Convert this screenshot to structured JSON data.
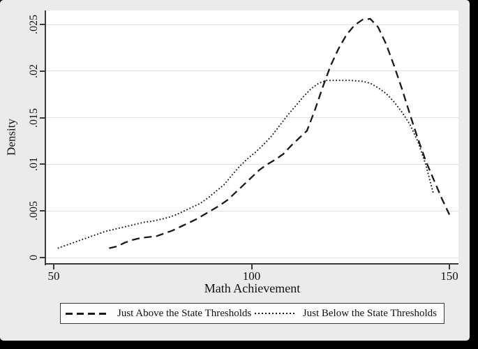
{
  "frame": {
    "background": "#000000"
  },
  "canvas": {
    "background": "#ebebeb",
    "plot_background": "#ffffff"
  },
  "chart_data": {
    "type": "line",
    "title": "",
    "xlabel": "Math Achievement",
    "ylabel": "Density",
    "xlim": [
      48,
      152.3
    ],
    "ylim": [
      0,
      0.0271
    ],
    "grid": "horizontal",
    "gridline_color": "#e0e0e0",
    "axis_color": "#3a3a3a",
    "legend_position": "bottom-boxed",
    "x_ticks": [
      {
        "label": "50",
        "value": 50
      },
      {
        "label": "100",
        "value": 100
      },
      {
        "label": "150",
        "value": 150
      }
    ],
    "y_ticks": [
      {
        "label": "0",
        "value": 0
      },
      {
        "label": ".005",
        "value": 0.005
      },
      {
        "label": ".01",
        "value": 0.01
      },
      {
        "label": ".015",
        "value": 0.015
      },
      {
        "label": ".02",
        "value": 0.02
      },
      {
        "label": ".025",
        "value": 0.025
      }
    ],
    "series": [
      {
        "name": "Just Above the State Thresholds",
        "style": "dashed",
        "color": "#1a1a1a",
        "points": [
          [
            64,
            0.001
          ],
          [
            66,
            0.0012
          ],
          [
            68,
            0.0016
          ],
          [
            70,
            0.0019
          ],
          [
            72,
            0.0021
          ],
          [
            74,
            0.0022
          ],
          [
            76,
            0.0023
          ],
          [
            78,
            0.0026
          ],
          [
            80,
            0.0029
          ],
          [
            82,
            0.0033
          ],
          [
            84,
            0.0037
          ],
          [
            86,
            0.0041
          ],
          [
            88,
            0.0046
          ],
          [
            90,
            0.0051
          ],
          [
            92,
            0.0056
          ],
          [
            94,
            0.0062
          ],
          [
            96,
            0.007
          ],
          [
            98,
            0.0078
          ],
          [
            100,
            0.0086
          ],
          [
            102,
            0.0094
          ],
          [
            104,
            0.01
          ],
          [
            106,
            0.0105
          ],
          [
            108,
            0.0111
          ],
          [
            110,
            0.012
          ],
          [
            112,
            0.0128
          ],
          [
            114,
            0.0136
          ],
          [
            116,
            0.0158
          ],
          [
            118,
            0.0183
          ],
          [
            120,
            0.0206
          ],
          [
            122,
            0.0224
          ],
          [
            124,
            0.0239
          ],
          [
            126,
            0.0249
          ],
          [
            128,
            0.0255
          ],
          [
            130,
            0.0256
          ],
          [
            132,
            0.0247
          ],
          [
            134,
            0.0229
          ],
          [
            136,
            0.0206
          ],
          [
            138,
            0.0181
          ],
          [
            140,
            0.0154
          ],
          [
            142,
            0.0128
          ],
          [
            144,
            0.0104
          ],
          [
            146,
            0.0084
          ],
          [
            148,
            0.0064
          ],
          [
            150,
            0.0046
          ]
        ]
      },
      {
        "name": "Just Below the State Thresholds",
        "style": "dotted",
        "color": "#1a1a1a",
        "points": [
          [
            51,
            0.001
          ],
          [
            53,
            0.0013
          ],
          [
            55,
            0.0016
          ],
          [
            57,
            0.0019
          ],
          [
            59,
            0.0022
          ],
          [
            61,
            0.0025
          ],
          [
            63,
            0.0028
          ],
          [
            65,
            0.003
          ],
          [
            67,
            0.0032
          ],
          [
            69,
            0.0034
          ],
          [
            71,
            0.0036
          ],
          [
            73,
            0.0038
          ],
          [
            75,
            0.0039
          ],
          [
            77,
            0.0041
          ],
          [
            79,
            0.0043
          ],
          [
            81,
            0.0046
          ],
          [
            83,
            0.005
          ],
          [
            85,
            0.0054
          ],
          [
            87,
            0.0058
          ],
          [
            89,
            0.0064
          ],
          [
            91,
            0.0071
          ],
          [
            93,
            0.0078
          ],
          [
            95,
            0.0088
          ],
          [
            97,
            0.0098
          ],
          [
            99,
            0.0106
          ],
          [
            101,
            0.0113
          ],
          [
            103,
            0.0121
          ],
          [
            105,
            0.013
          ],
          [
            107,
            0.0141
          ],
          [
            109,
            0.0152
          ],
          [
            111,
            0.0162
          ],
          [
            113,
            0.0172
          ],
          [
            115,
            0.0181
          ],
          [
            117,
            0.0187
          ],
          [
            119,
            0.019
          ],
          [
            122,
            0.019
          ],
          [
            125,
            0.019
          ],
          [
            128,
            0.0189
          ],
          [
            130,
            0.0187
          ],
          [
            132,
            0.0182
          ],
          [
            134,
            0.0176
          ],
          [
            136,
            0.0167
          ],
          [
            138,
            0.0156
          ],
          [
            140,
            0.0143
          ],
          [
            142,
            0.0125
          ],
          [
            144,
            0.01
          ],
          [
            146,
            0.0068
          ]
        ]
      }
    ]
  }
}
